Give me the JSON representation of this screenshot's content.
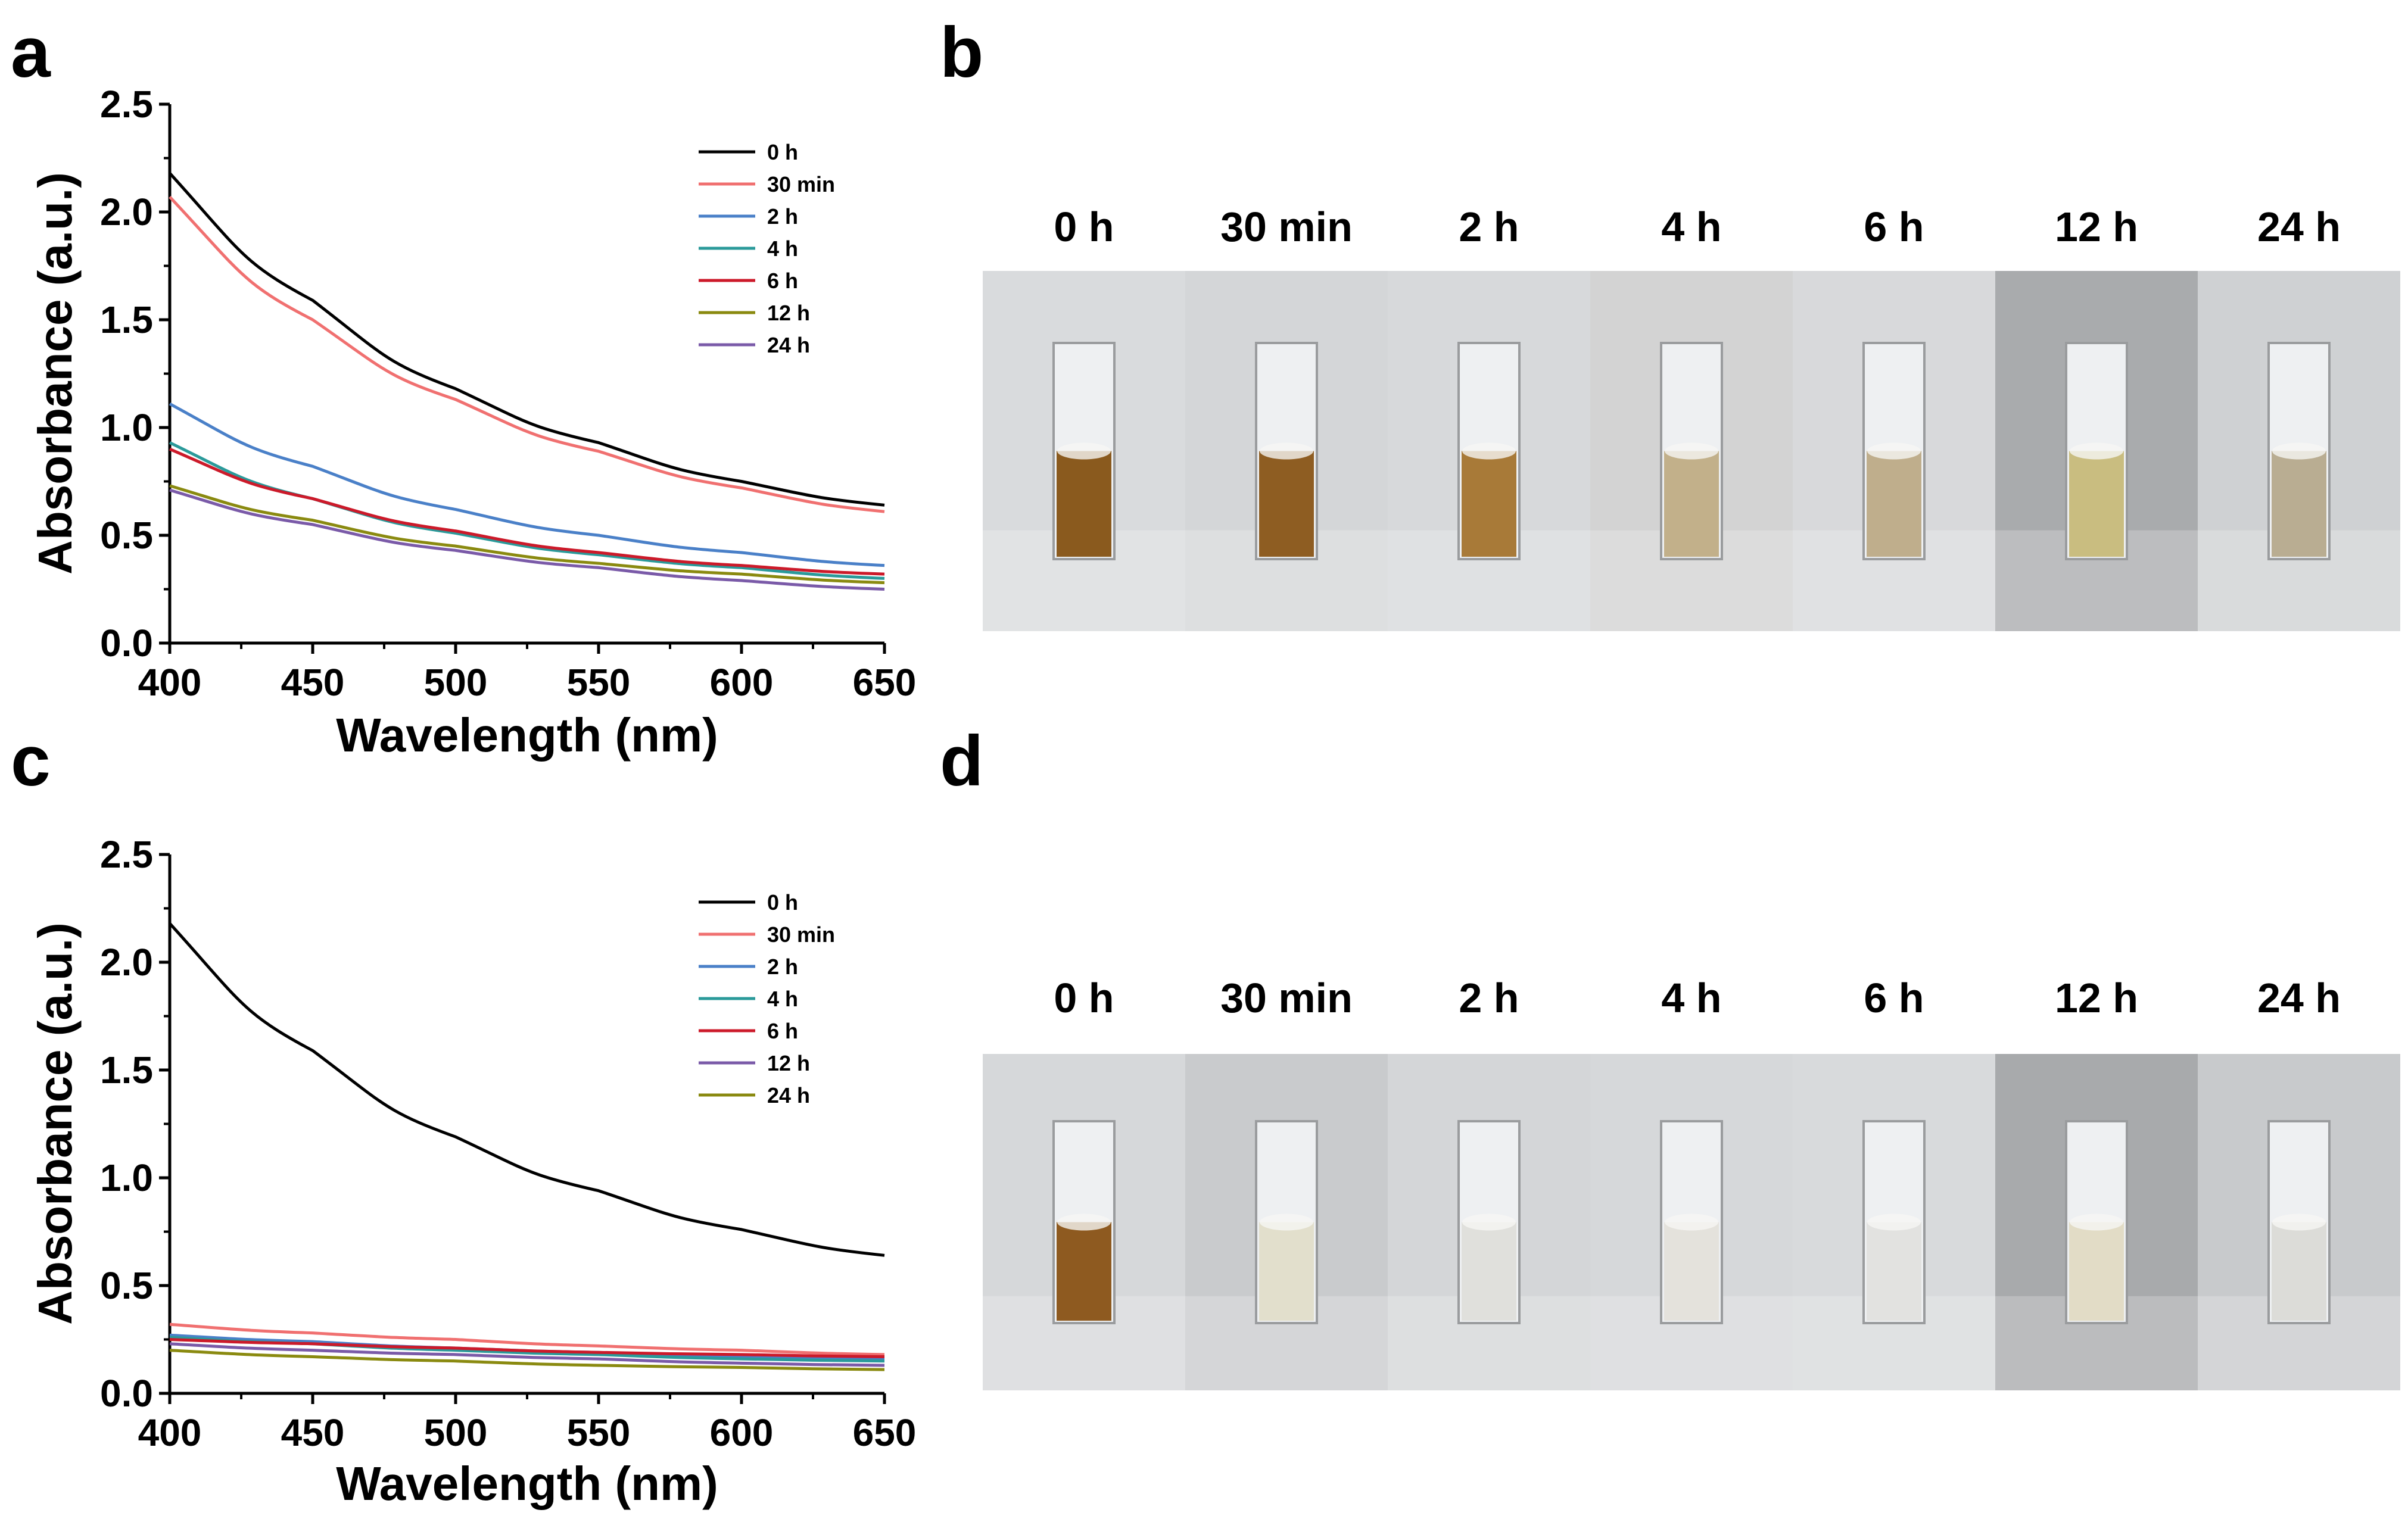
{
  "panels": {
    "a": "a",
    "b": "b",
    "c": "c",
    "d": "d"
  },
  "chart_data": [
    {
      "id": "a",
      "type": "line",
      "title": "",
      "xlabel": "Wavelength (nm)",
      "ylabel": "Absorbance (a.u.)",
      "xlim": [
        400,
        650
      ],
      "ylim": [
        0.0,
        2.5
      ],
      "x_ticks": [
        "400",
        "450",
        "500",
        "550",
        "600",
        "650"
      ],
      "y_ticks": [
        "0.0",
        "0.5",
        "1.0",
        "1.5",
        "2.0",
        "2.5"
      ],
      "x": [
        400,
        450,
        500,
        550,
        600,
        650
      ],
      "legend": "top-right",
      "series": [
        {
          "name": "0 h",
          "color": "#000000",
          "values": [
            2.18,
            1.59,
            1.18,
            0.93,
            0.75,
            0.64
          ]
        },
        {
          "name": "30 min",
          "color": "#f07070",
          "values": [
            2.07,
            1.5,
            1.13,
            0.89,
            0.72,
            0.61
          ]
        },
        {
          "name": "2 h",
          "color": "#4a80c8",
          "values": [
            1.11,
            0.82,
            0.62,
            0.5,
            0.42,
            0.36
          ]
        },
        {
          "name": "4 h",
          "color": "#2a9a9a",
          "values": [
            0.93,
            0.67,
            0.51,
            0.41,
            0.35,
            0.3
          ]
        },
        {
          "name": "6 h",
          "color": "#cc1a2a",
          "values": [
            0.9,
            0.67,
            0.52,
            0.42,
            0.36,
            0.32
          ]
        },
        {
          "name": "12 h",
          "color": "#8a8a10",
          "values": [
            0.73,
            0.57,
            0.45,
            0.37,
            0.32,
            0.28
          ]
        },
        {
          "name": "24 h",
          "color": "#7a5aa8",
          "values": [
            0.71,
            0.55,
            0.43,
            0.35,
            0.29,
            0.25
          ]
        }
      ]
    },
    {
      "id": "c",
      "type": "line",
      "title": "",
      "xlabel": "Wavelength (nm)",
      "ylabel": "Absorbance (a.u.)",
      "xlim": [
        400,
        650
      ],
      "ylim": [
        0.0,
        2.5
      ],
      "x_ticks": [
        "400",
        "450",
        "500",
        "550",
        "600",
        "650"
      ],
      "y_ticks": [
        "0.0",
        "0.5",
        "1.0",
        "1.5",
        "2.0",
        "2.5"
      ],
      "x": [
        400,
        450,
        500,
        550,
        600,
        650
      ],
      "legend": "top-right",
      "series": [
        {
          "name": "0 h",
          "color": "#000000",
          "values": [
            2.18,
            1.59,
            1.19,
            0.94,
            0.76,
            0.64
          ]
        },
        {
          "name": "30 min",
          "color": "#f07070",
          "values": [
            0.32,
            0.28,
            0.25,
            0.22,
            0.2,
            0.18
          ]
        },
        {
          "name": "2 h",
          "color": "#4a80c8",
          "values": [
            0.27,
            0.24,
            0.21,
            0.19,
            0.17,
            0.16
          ]
        },
        {
          "name": "4 h",
          "color": "#2a9a9a",
          "values": [
            0.26,
            0.23,
            0.2,
            0.18,
            0.16,
            0.15
          ]
        },
        {
          "name": "6 h",
          "color": "#cc1a2a",
          "values": [
            0.25,
            0.23,
            0.21,
            0.19,
            0.18,
            0.17
          ]
        },
        {
          "name": "12 h",
          "color": "#7a5aa8",
          "values": [
            0.23,
            0.2,
            0.18,
            0.16,
            0.14,
            0.13
          ]
        },
        {
          "name": "24 h",
          "color": "#8a8a10",
          "values": [
            0.2,
            0.17,
            0.15,
            0.13,
            0.12,
            0.11
          ]
        }
      ]
    }
  ],
  "photo_panels": [
    {
      "id": "b",
      "cuvettes": [
        {
          "label": "0 h",
          "liquid": "#8a5a1e",
          "bg": "#d9dbdd"
        },
        {
          "label": "30 min",
          "liquid": "#8e5d22",
          "bg": "#d4d6d8"
        },
        {
          "label": "2 h",
          "liquid": "#a87a38",
          "bg": "#d7d9db"
        },
        {
          "label": "4 h",
          "liquid": "#c2b08a",
          "bg": "#d3d3d3"
        },
        {
          "label": "6 h",
          "liquid": "#bfae8c",
          "bg": "#d8d9db"
        },
        {
          "label": "12 h",
          "liquid": "#c9bd80",
          "bg": "#a9abad"
        },
        {
          "label": "24 h",
          "liquid": "#b9ad92",
          "bg": "#cfd1d3"
        }
      ]
    },
    {
      "id": "d",
      "cuvettes": [
        {
          "label": "0 h",
          "liquid": "#8e5a20",
          "bg": "#d6d8da"
        },
        {
          "label": "30 min",
          "liquid": "#e2dfcc",
          "bg": "#c9cbcd"
        },
        {
          "label": "2 h",
          "liquid": "#e0e0dc",
          "bg": "#d4d6d8"
        },
        {
          "label": "4 h",
          "liquid": "#e4e2dc",
          "bg": "#d6d8da"
        },
        {
          "label": "6 h",
          "liquid": "#e2e2e0",
          "bg": "#d8dadc"
        },
        {
          "label": "12 h",
          "liquid": "#e2dcc6",
          "bg": "#a8aaac"
        },
        {
          "label": "24 h",
          "liquid": "#dcdcd8",
          "bg": "#c8cacc"
        }
      ]
    }
  ]
}
